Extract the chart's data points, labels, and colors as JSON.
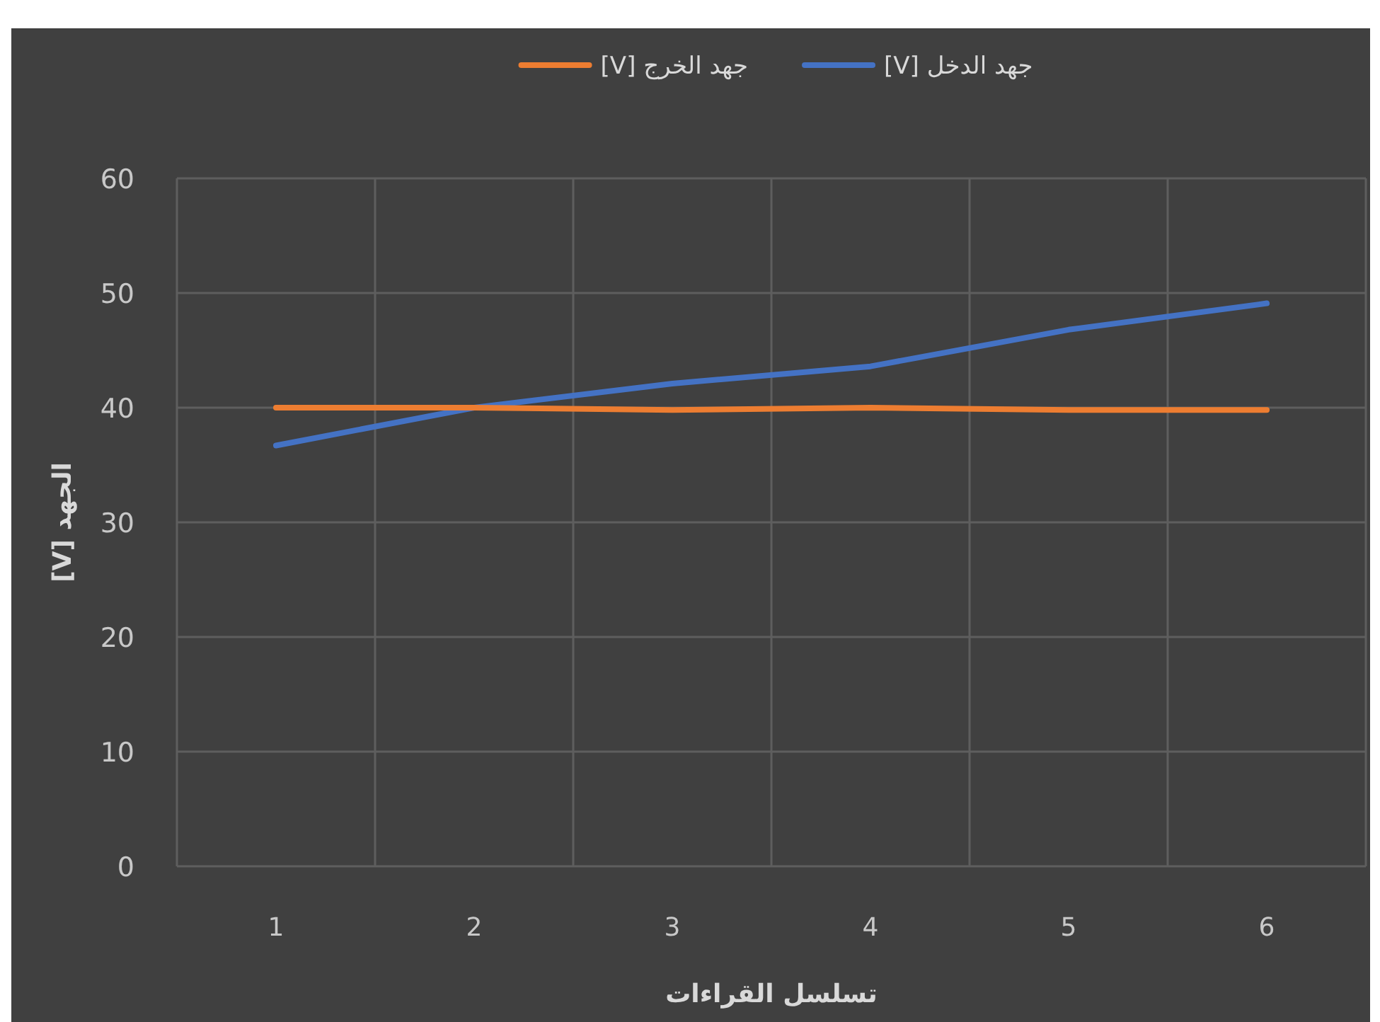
{
  "chart_data": {
    "type": "line",
    "xlabel": "تسلسل القراءات",
    "ylabel": "الجهد [V]",
    "categories": [
      "1",
      "2",
      "3",
      "4",
      "5",
      "6"
    ],
    "series": [
      {
        "name": "جهد الدخل [V]",
        "color": "#4472c4",
        "values": [
          36.7,
          40.0,
          42.1,
          43.6,
          46.8,
          49.1
        ]
      },
      {
        "name": "جهد الخرج [V]",
        "color": "#ed7d31",
        "values": [
          40.0,
          40.0,
          39.8,
          40.0,
          39.8,
          39.8
        ]
      }
    ],
    "ylim": [
      0,
      60
    ],
    "yticks": [
      0,
      10,
      20,
      30,
      40,
      50,
      60
    ],
    "grid": true,
    "legend": "top",
    "marker": "none",
    "line_style": "solid"
  }
}
